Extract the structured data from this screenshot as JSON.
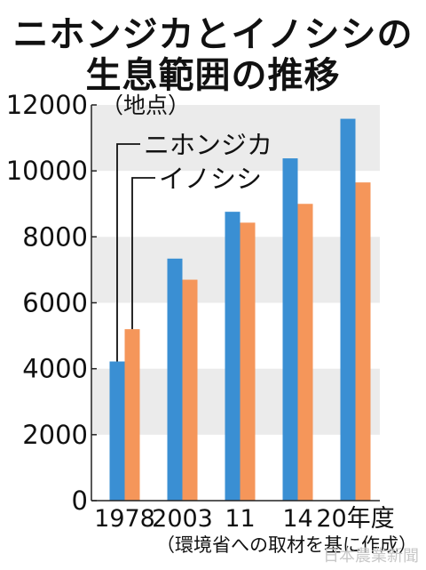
{
  "title_line1": "ニホンジカとイノシシの",
  "title_line2": "生息範囲の推移",
  "source": "（環境省への取材を基に作成）",
  "watermark": "日本農業新聞",
  "chart_data": {
    "type": "bar",
    "title": "ニホンジカとイノシシの生息範囲の推移",
    "categories": [
      "1978",
      "2003",
      "11",
      "14",
      "20年度"
    ],
    "series": [
      {
        "name": "ニホンジカ",
        "color": "#3a8fd3",
        "values": [
          4220,
          7340,
          8760,
          10380,
          11580
        ]
      },
      {
        "name": "イノシシ",
        "color": "#f5965a",
        "values": [
          5200,
          6700,
          8430,
          9000,
          9650
        ]
      }
    ],
    "ylabel": "（地点）",
    "ylim": [
      0,
      12000
    ],
    "yticks": [
      0,
      2000,
      4000,
      6000,
      8000,
      10000,
      12000
    ],
    "grid": "alternating horizontal bands",
    "legend": "top-left"
  }
}
